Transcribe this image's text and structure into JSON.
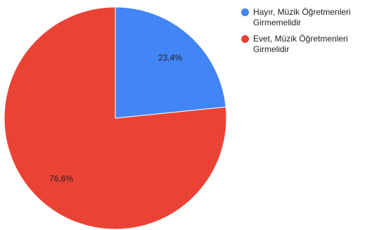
{
  "chart_data": {
    "type": "pie",
    "title": "",
    "slices": [
      {
        "label": "Hayır, Müzik Öğretmenleri Girmemelidir",
        "value": 23.4,
        "display": "23,4%",
        "color": "#4285f4"
      },
      {
        "label": "Evet, Müzik Öğretmenleri Girmelidir",
        "value": 76.6,
        "display": "76,6%",
        "color": "#ea4335"
      }
    ],
    "legend_position": "right",
    "start_angle": "top, clockwise"
  },
  "legend": {
    "items": [
      {
        "line1": "Hayır, Müzik Öğretmenleri",
        "line2": "Girmemelidir",
        "color": "#4285f4"
      },
      {
        "line1": "Evet, Müzik Öğretmenleri",
        "line2": "Girmelidir",
        "color": "#ea4335"
      }
    ]
  }
}
